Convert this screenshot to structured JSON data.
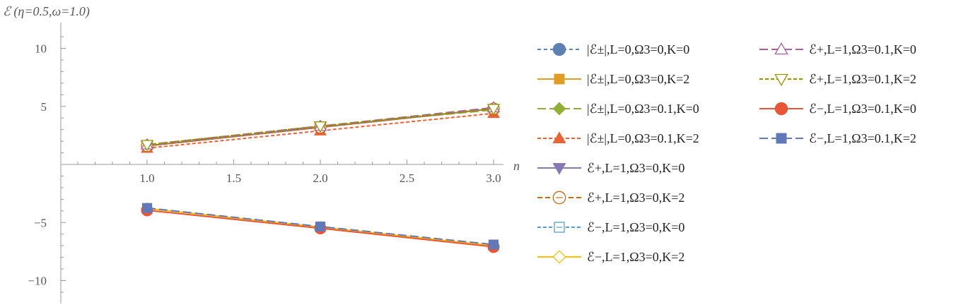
{
  "chart_data": {
    "type": "line",
    "title": "",
    "xlabel": "n",
    "ylabel": "ℰ (η=0.5,ω=1.0)",
    "xlim": [
      0.5,
      3.05
    ],
    "ylim": [
      -12.0,
      12.0
    ],
    "x": [
      1.0,
      2.0,
      3.0
    ],
    "x_ticks": [
      1.0,
      1.5,
      2.0,
      2.5,
      3.0
    ],
    "x_tick_labels": [
      "1.0",
      "1.5",
      "2.0",
      "2.5",
      "3.0"
    ],
    "y_ticks": [
      10,
      5,
      -5,
      -10
    ],
    "y_tick_labels": [
      "10",
      "5",
      "−5",
      "−10"
    ],
    "grid": false,
    "legend_placement": "right",
    "series": [
      {
        "name": "|ℰ±|,L=0,Ω3=0,K=0",
        "color": "#5e81b5",
        "dash": "5,4",
        "marker": "circle",
        "filled": true,
        "values": [
          1.6,
          3.2,
          4.8
        ]
      },
      {
        "name": "|ℰ±|,L=0,Ω3=0,K=2",
        "color": "#e19c24",
        "dash": "",
        "marker": "square",
        "filled": true,
        "values": [
          1.6,
          3.2,
          4.8
        ]
      },
      {
        "name": "|ℰ±|,L=0,Ω3=0.1,K=0",
        "color": "#8fb032",
        "dash": "12,5",
        "marker": "diamond",
        "filled": true,
        "values": [
          1.7,
          3.3,
          4.7
        ]
      },
      {
        "name": "|ℰ±|,L=0,Ω3=0.1,K=2",
        "color": "#eb6235",
        "dash": "5,3",
        "marker": "triangle-up",
        "filled": true,
        "values": [
          1.4,
          2.9,
          4.4
        ]
      },
      {
        "name": "ℰ+,L=1,Ω3=0,K=0",
        "color": "#8778b3",
        "dash": "",
        "marker": "triangle-down",
        "filled": true,
        "values": [
          1.6,
          3.2,
          4.8
        ]
      },
      {
        "name": "ℰ+,L=1,Ω3=0,K=2",
        "color": "#c56e1a",
        "dash": "7,4",
        "marker": "circle",
        "filled": false,
        "values": [
          1.6,
          3.2,
          4.8
        ]
      },
      {
        "name": "ℰ−,L=1,Ω3=0,K=0",
        "color": "#5d9ec7",
        "dash": "5,3",
        "marker": "square",
        "filled": false,
        "values": [
          -3.8,
          -5.4,
          -7.0
        ]
      },
      {
        "name": "ℰ−,L=1,Ω3=0,K=2",
        "color": "#ffbf00",
        "dash": "",
        "marker": "diamond",
        "filled": false,
        "values": [
          -3.8,
          -5.4,
          -7.0
        ]
      },
      {
        "name": "ℰ+,L=1,Ω3=0.1,K=0",
        "color": "#a5609d",
        "dash": "12,5",
        "marker": "triangle-up",
        "filled": false,
        "values": [
          1.7,
          3.3,
          4.9
        ]
      },
      {
        "name": "ℰ+,L=1,Ω3=0.1,K=2",
        "color": "#929600",
        "dash": "5,3",
        "marker": "triangle-down",
        "filled": false,
        "values": [
          1.7,
          3.3,
          4.8
        ]
      },
      {
        "name": "ℰ−,L=1,Ω3=0.1,K=0",
        "color": "#e95536",
        "dash": "",
        "marker": "circle",
        "filled": true,
        "values": [
          -3.95,
          -5.5,
          -7.1
        ]
      },
      {
        "name": "ℰ−,L=1,Ω3=0.1,K=2",
        "color": "#6279b8",
        "dash": "12,5",
        "marker": "square",
        "filled": true,
        "values": [
          -3.75,
          -5.35,
          -6.9
        ]
      }
    ]
  }
}
